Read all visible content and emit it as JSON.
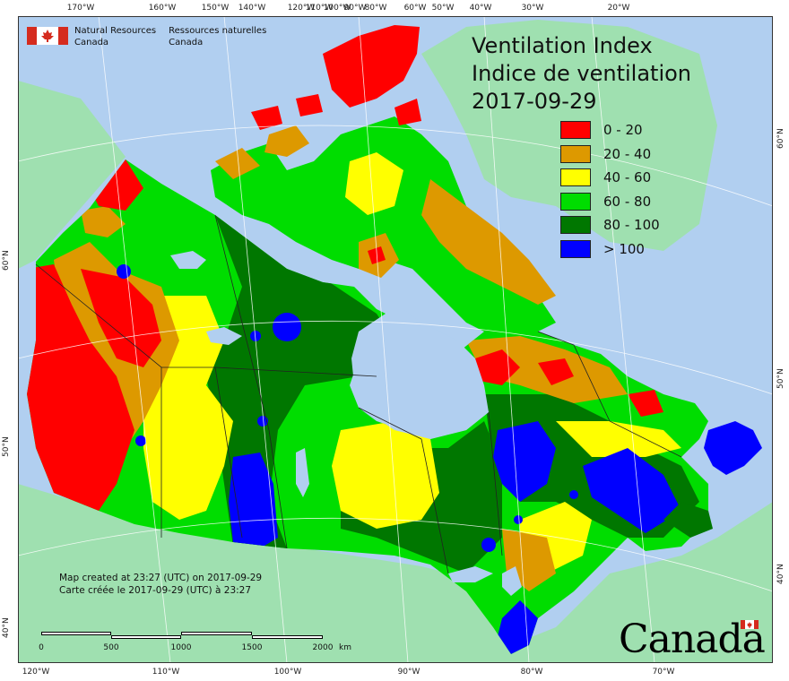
{
  "title": {
    "line1": "Ventilation Index",
    "line2": "Indice de ventilation",
    "date": "2017-09-29"
  },
  "agency": {
    "en_line1": "Natural Resources",
    "en_line2": "Canada",
    "fr_line1": "Ressources naturelles",
    "fr_line2": "Canada"
  },
  "legend": [
    {
      "label": "0 - 20",
      "color": "#ff0000"
    },
    {
      "label": "20 - 40",
      "color": "#dd9900"
    },
    {
      "label": "40 - 60",
      "color": "#ffff00"
    },
    {
      "label": "60 - 80",
      "color": "#00dd00"
    },
    {
      "label": "80 - 100",
      "color": "#007700"
    },
    {
      "label": "> 100",
      "color": "#0000ff"
    }
  ],
  "colors": {
    "water": "#b1cff0",
    "foreign_land": "#9fe0b0",
    "graticule": "#ffffff",
    "boundary": "#222222"
  },
  "ticks": {
    "top": [
      "170°W",
      "160°W",
      "150°W",
      "140°W",
      "120°W",
      "110°W",
      "100°W",
      "90°W",
      "80°W",
      "60°W",
      "50°W",
      "40°W",
      "30°W",
      "20°W"
    ],
    "bottom": [
      "120°W",
      "110°W",
      "100°W",
      "90°W",
      "80°W",
      "70°W"
    ],
    "left": [
      "60°N",
      "50°N",
      "40°N"
    ],
    "right": [
      "60°N",
      "50°N",
      "40°N"
    ]
  },
  "created": {
    "en": "Map created at 23:27 (UTC) on 2017-09-29",
    "fr": "Carte créée le 2017-09-29 (UTC) à 23:27"
  },
  "scale": {
    "labels": [
      "0",
      "500",
      "1000",
      "1500",
      "2000"
    ],
    "unit": "km"
  },
  "wordmark": "Canada"
}
